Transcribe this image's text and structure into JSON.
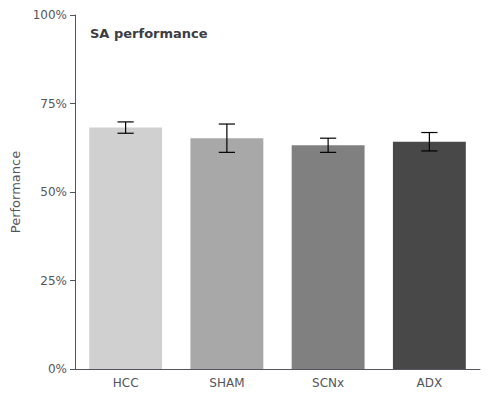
{
  "chart_data": {
    "type": "bar",
    "title": "SA performance",
    "ylabel": "Performance",
    "categories": [
      "HCC",
      "SHAM",
      "SCNx",
      "ADX"
    ],
    "values": [
      0.682,
      0.652,
      0.632,
      0.642
    ],
    "errors": [
      0.016,
      0.04,
      0.02,
      0.026
    ],
    "colors": [
      "#d0d0d0",
      "#a8a8a8",
      "#808080",
      "#484848"
    ],
    "ylim": [
      0.0,
      1.0
    ],
    "yticks": [
      {
        "value": 0.0,
        "label": "0%"
      },
      {
        "value": 0.25,
        "label": "25%"
      },
      {
        "value": 0.5,
        "label": "50%"
      },
      {
        "value": 0.75,
        "label": "75%"
      },
      {
        "value": 1.0,
        "label": "100%"
      }
    ],
    "grid": false
  }
}
